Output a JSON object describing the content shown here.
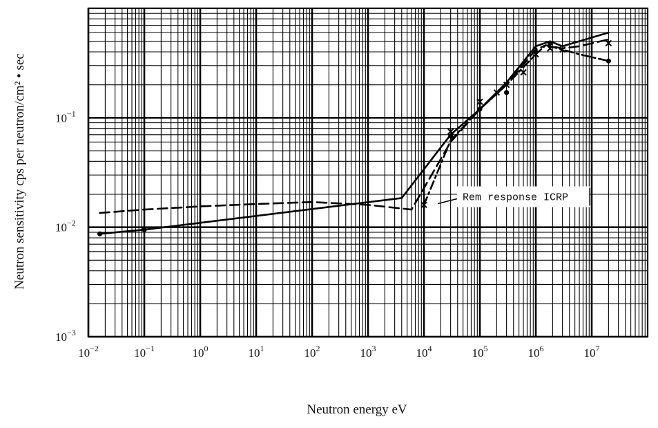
{
  "chart_data": {
    "type": "line",
    "title": "",
    "xlabel": "Neutron energy eV",
    "ylabel": "Neutron sensitivity cps per neutron/cm² • sec",
    "x_scale": "log",
    "y_scale": "log",
    "xlim": [
      0.01,
      100000000
    ],
    "ylim": [
      0.001,
      1
    ],
    "grid": true,
    "x_ticks": [
      {
        "base": "10",
        "exp": "−2",
        "value": 0.01
      },
      {
        "base": "10",
        "exp": "−1",
        "value": 0.1
      },
      {
        "base": "10",
        "exp": "0",
        "value": 1
      },
      {
        "base": "10",
        "exp": "1",
        "value": 10
      },
      {
        "base": "10",
        "exp": "2",
        "value": 100
      },
      {
        "base": "10",
        "exp": "3",
        "value": 1000
      },
      {
        "base": "10",
        "exp": "4",
        "value": 10000
      },
      {
        "base": "10",
        "exp": "5",
        "value": 100000
      },
      {
        "base": "10",
        "exp": "6",
        "value": 1000000
      },
      {
        "base": "10",
        "exp": "7",
        "value": 10000000
      }
    ],
    "y_ticks": [
      {
        "base": "10",
        "exp": "−3",
        "value": 0.001
      },
      {
        "base": "10",
        "exp": "−2",
        "value": 0.01
      },
      {
        "base": "10",
        "exp": "−1",
        "value": 0.1
      }
    ],
    "series": [
      {
        "style": "solid",
        "marker": "circle",
        "x": [
          0.016,
          0.1,
          4000,
          30000,
          100000,
          300000,
          1000000,
          1800000,
          3000000,
          20000000
        ],
        "y": [
          0.0087,
          0.0095,
          0.0185,
          0.07,
          0.12,
          0.21,
          0.45,
          0.5,
          0.45,
          0.6
        ],
        "points_x": [
          0.016,
          0.1,
          30000,
          100000,
          300000,
          1000000,
          1800000,
          20000000
        ],
        "points_y": [
          0.0087,
          0.0095,
          0.068,
          0.12,
          0.17,
          0.4,
          0.48,
          0.33
        ]
      },
      {
        "style": "dashed",
        "marker": "none",
        "x": [
          0.016,
          0.1,
          1,
          10,
          100,
          1000,
          6000,
          30000,
          100000,
          300000,
          1000000,
          1500000,
          3000000,
          6000000,
          20000000
        ],
        "y": [
          0.0135,
          0.0145,
          0.0155,
          0.0163,
          0.017,
          0.016,
          0.0145,
          0.06,
          0.12,
          0.2,
          0.42,
          0.46,
          0.43,
          0.45,
          0.52
        ]
      },
      {
        "style": "dash-dot",
        "marker": "cross",
        "x": [
          10000,
          30000,
          100000,
          300000,
          1000000,
          1500000,
          3000000,
          6000000,
          20000000
        ],
        "y": [
          0.016,
          0.062,
          0.12,
          0.2,
          0.38,
          0.46,
          0.42,
          0.38,
          0.33
        ],
        "points_x": [
          10000,
          30000,
          100000,
          200000,
          300000,
          600000,
          1000000,
          1800000,
          3000000,
          20000000
        ],
        "points_y": [
          0.016,
          0.075,
          0.14,
          0.17,
          0.2,
          0.26,
          0.38,
          0.43,
          0.42,
          0.48
        ]
      }
    ],
    "annotations": [
      {
        "text": "Rem response ICRP",
        "x": 600000,
        "y": 0.019
      }
    ]
  }
}
